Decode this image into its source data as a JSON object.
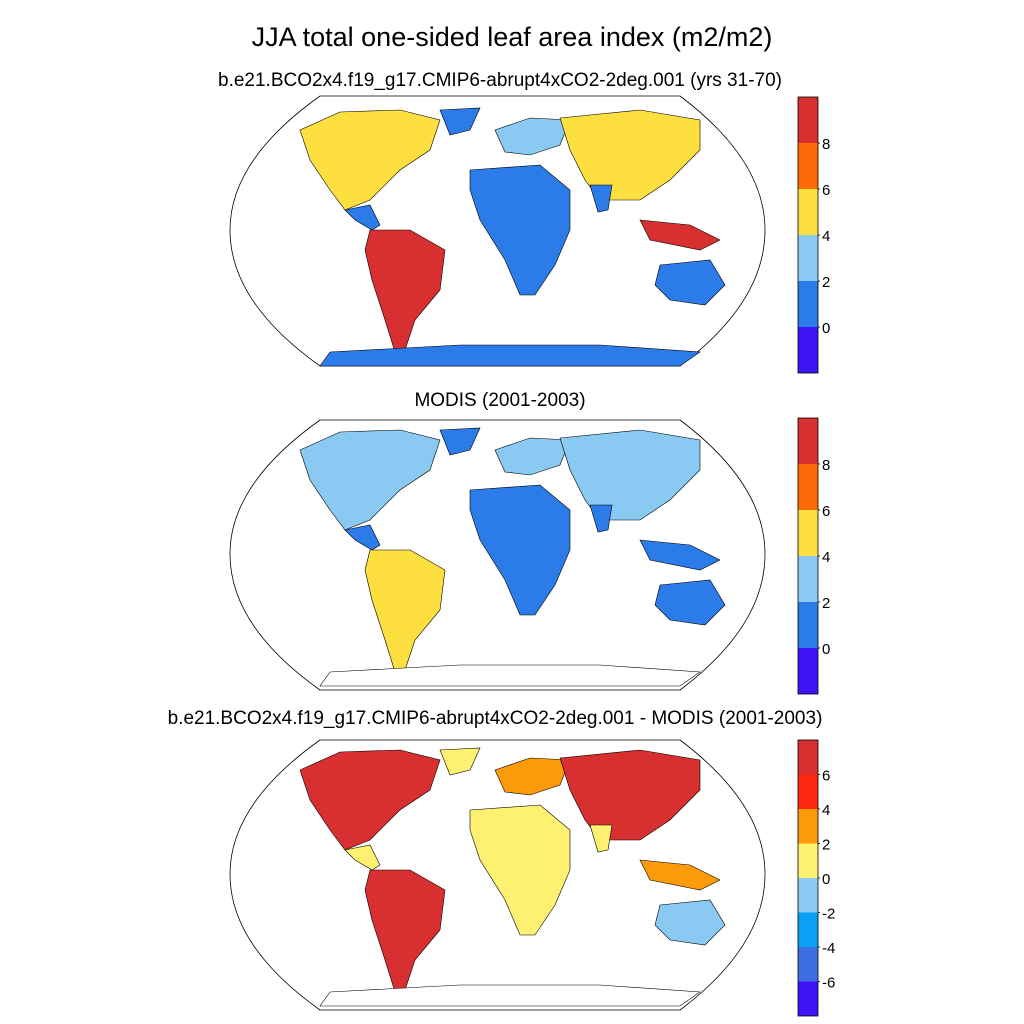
{
  "title": "JJA total one-sided leaf area index (m2/m2)",
  "panels": [
    {
      "subtitle": "b.e21.BCO2x4.f19_g17.CMIP6-abrupt4xCO2-2deg.001 (yrs 31-70)",
      "colorbar": {
        "colors": [
          "#3c14f5",
          "#2b7be8",
          "#8acaf2",
          "#fde040",
          "#fd6a0a",
          "#d83030"
        ],
        "labels": [
          "0",
          "2",
          "4",
          "6",
          "8"
        ]
      }
    },
    {
      "subtitle": "MODIS (2001-2003)",
      "colorbar": {
        "colors": [
          "#3c14f5",
          "#2b7be8",
          "#8acaf2",
          "#fde040",
          "#fd6a0a",
          "#d83030"
        ],
        "labels": [
          "0",
          "2",
          "4",
          "6",
          "8"
        ]
      }
    },
    {
      "subtitle": "b.e21.BCO2x4.f19_g17.CMIP6-abrupt4xCO2-2deg.001 - MODIS (2001-2003)",
      "colorbar": {
        "colors": [
          "#3c14f5",
          "#3f6ee0",
          "#0aa0f5",
          "#8acaf2",
          "#fef070",
          "#fd9a0a",
          "#fd2810",
          "#d83030"
        ],
        "labels": [
          "-6",
          "-4",
          "-2",
          "0",
          "2",
          "4",
          "6"
        ]
      }
    }
  ]
}
